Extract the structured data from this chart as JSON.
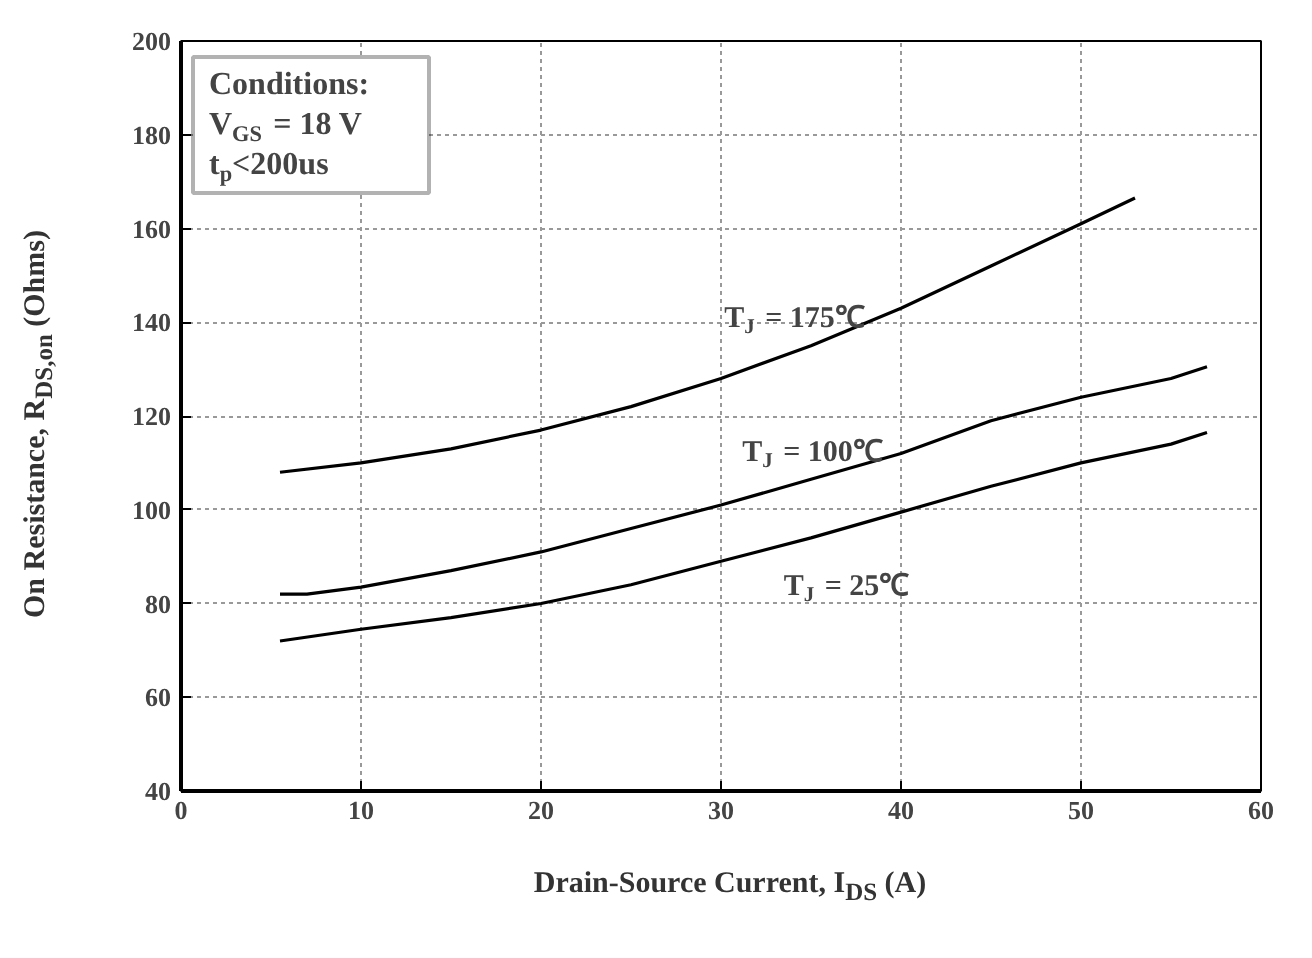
{
  "chart_data": {
    "type": "line",
    "xlabel": "Drain-Source Current, I$_{DS}$ (A)",
    "ylabel": "On Resistance, R$_{DS,on}$ (Ohms)",
    "xlim": [
      0,
      60
    ],
    "xticks": [
      0,
      10,
      20,
      30,
      40,
      50,
      60
    ],
    "ylim": [
      40,
      200
    ],
    "yticks": [
      40,
      60,
      80,
      100,
      120,
      140,
      160,
      180,
      200
    ],
    "grid": true,
    "line_style": "solid",
    "series": [
      {
        "color": "#000000",
        "x": [
          5.5,
          10,
          15,
          20,
          25,
          30,
          35,
          40,
          45,
          50,
          53
        ],
        "values": [
          108,
          110,
          113,
          117,
          122,
          128,
          135,
          143,
          152,
          161,
          166.5
        ]
      },
      {
        "color": "#000000",
        "x": [
          5.5,
          7,
          10,
          15,
          20,
          25,
          30,
          35,
          40,
          45,
          50,
          55,
          57
        ],
        "values": [
          82,
          82,
          83.5,
          87,
          91,
          96,
          101,
          106.5,
          112,
          119,
          124,
          128,
          130.5
        ]
      },
      {
        "color": "#000000",
        "x": [
          5.5,
          10,
          15,
          20,
          25,
          30,
          35,
          40,
          45,
          50,
          55,
          57
        ],
        "values": [
          72,
          74.5,
          77,
          80,
          84,
          89,
          94,
          99.5,
          105,
          110,
          114,
          116.5
        ]
      }
    ],
    "annotations": [
      "T$_{J}$ = 175℃",
      "T$_{J}$ = 100℃",
      "T$_{J}$ = 25℃",
      "Conditions:\nV$_{GS}$ = 18 V\nt$_{p}$<200us"
    ]
  }
}
